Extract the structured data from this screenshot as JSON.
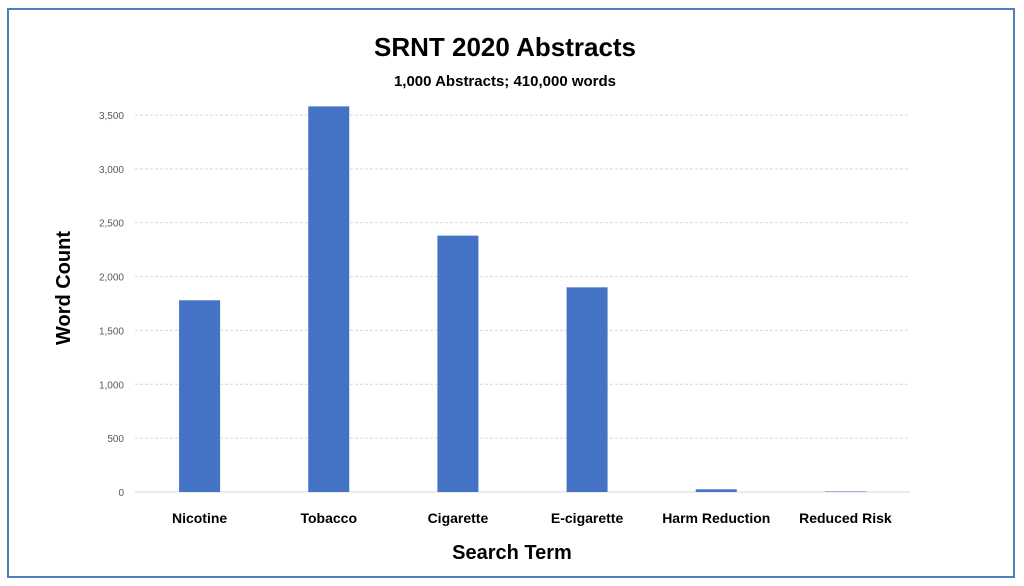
{
  "chart_data": {
    "type": "bar",
    "title": "SRNT 2020 Abstracts",
    "subtitle": "1,000 Abstracts; 410,000 words",
    "xlabel": "Search Term",
    "ylabel": "Word Count",
    "categories": [
      "Nicotine",
      "Tobacco",
      "Cigarette",
      "E-cigarette",
      "Harm Reduction",
      "Reduced Risk"
    ],
    "values": [
      1780,
      3580,
      2380,
      1900,
      25,
      5
    ],
    "ylim": [
      0,
      3500
    ],
    "yticks": [
      "0",
      "500",
      "1,000",
      "1,500",
      "2,000",
      "2,500",
      "3,000",
      "3,500"
    ],
    "grid": true,
    "bar_color": "#4472c4",
    "frame_color": "#4f7fc0"
  }
}
